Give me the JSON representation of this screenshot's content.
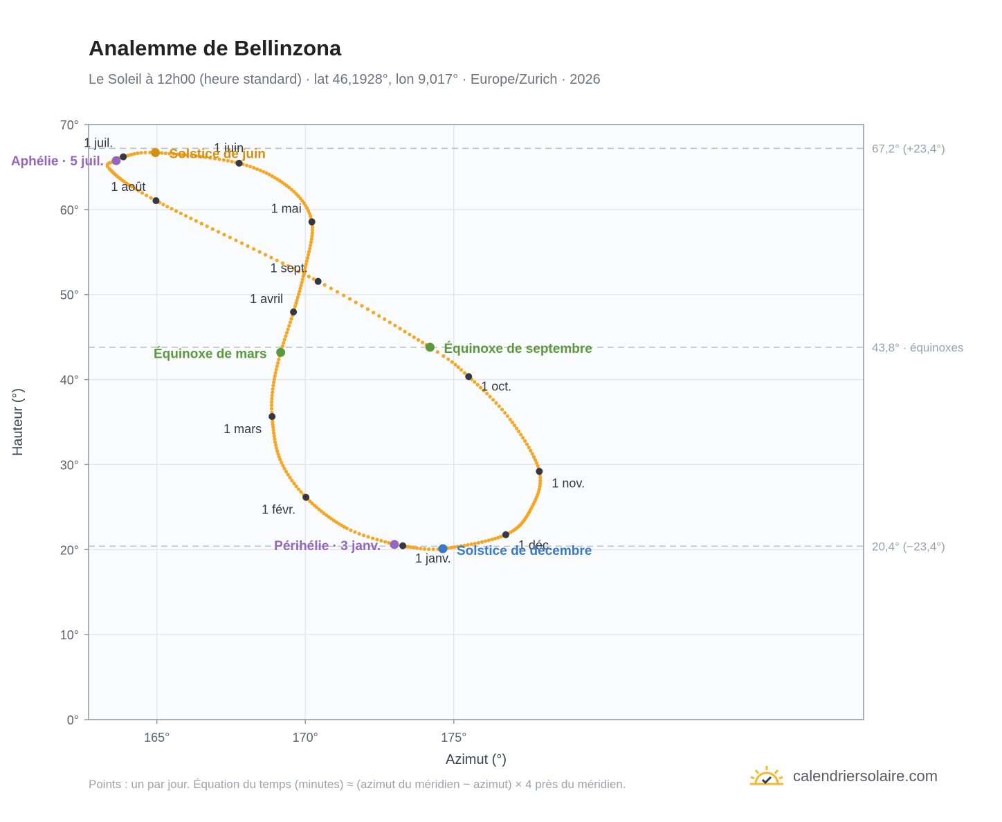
{
  "title": "Analemme de Bellinzona",
  "subtitle": "Le Soleil à 12h00 (heure standard) · lat 46,1928°, lon 9,017° · Europe/Zurich · 2026",
  "footnote": "Points : un par jour. Équation du temps (minutes) ≈ (azimut du méridien − azimut) × 4 près du méridien.",
  "brand": {
    "name": "calendriersolaire.com",
    "icon": "sun-check-icon"
  },
  "colors": {
    "curve": "#f5a623",
    "month_dot": "#333842",
    "aphelion": "#9467bd",
    "perihelion": "#9467bd",
    "june_solstice": "#d4900f",
    "december_solstice": "#3a7ac4",
    "equinox": "#5a9a3c",
    "reference_line": "#b8c0cc",
    "grid": "#e3e7ed",
    "plot_bg": "#fafbfd",
    "frame": "#8d97a5"
  },
  "chart_data": {
    "type": "scatter",
    "title": "Analemme de Bellinzona",
    "xlabel": "Azimut (°)",
    "ylabel": "Hauteur (°)",
    "xlim": [
      162.7,
      188.8
    ],
    "ylim": [
      0,
      70
    ],
    "x_ticks": [
      165,
      170,
      175
    ],
    "x_tick_labels": [
      "165°",
      "170°",
      "175°"
    ],
    "y_ticks": [
      0,
      10,
      20,
      30,
      40,
      50,
      60,
      70
    ],
    "y_tick_labels": [
      "0°",
      "10°",
      "20°",
      "30°",
      "40°",
      "50°",
      "60°",
      "70°"
    ],
    "grid": true,
    "series": [
      {
        "points_per": "day",
        "anchors": [
          {
            "date": "2026-01-01",
            "azimuth": 173.28,
            "altitude": 20.45
          },
          {
            "date": "2026-01-03",
            "azimuth": 173.0,
            "altitude": 20.6
          },
          {
            "date": "2026-01-15",
            "azimuth": 171.4,
            "altitude": 22.5
          },
          {
            "date": "2026-02-01",
            "azimuth": 170.02,
            "altitude": 26.15
          },
          {
            "date": "2026-02-14",
            "azimuth": 169.15,
            "altitude": 30.6
          },
          {
            "date": "2026-03-01",
            "azimuth": 168.88,
            "altitude": 35.65
          },
          {
            "date": "2026-03-10",
            "azimuth": 168.92,
            "altitude": 39.3
          },
          {
            "date": "2026-03-20",
            "azimuth": 169.17,
            "altitude": 43.2
          },
          {
            "date": "2026-04-01",
            "azimuth": 169.6,
            "altitude": 47.95
          },
          {
            "date": "2026-04-15",
            "azimuth": 169.98,
            "altitude": 52.9
          },
          {
            "date": "2026-05-01",
            "azimuth": 170.22,
            "altitude": 58.55
          },
          {
            "date": "2026-05-15",
            "azimuth": 169.45,
            "altitude": 62.6
          },
          {
            "date": "2026-06-01",
            "azimuth": 167.77,
            "altitude": 65.45
          },
          {
            "date": "2026-06-21",
            "azimuth": 164.95,
            "altitude": 66.7
          },
          {
            "date": "2026-07-01",
            "azimuth": 163.87,
            "altitude": 66.2
          },
          {
            "date": "2026-07-05",
            "azimuth": 163.63,
            "altitude": 65.75
          },
          {
            "date": "2026-07-12",
            "azimuth": 163.4,
            "altitude": 64.8
          },
          {
            "date": "2026-08-01",
            "azimuth": 164.97,
            "altitude": 61.05
          },
          {
            "date": "2026-09-01",
            "azimuth": 170.43,
            "altitude": 51.55
          },
          {
            "date": "2026-09-22",
            "azimuth": 174.2,
            "altitude": 43.8
          },
          {
            "date": "2026-10-01",
            "azimuth": 175.5,
            "altitude": 40.35
          },
          {
            "date": "2026-10-15",
            "azimuth": 176.9,
            "altitude": 35.3
          },
          {
            "date": "2026-11-01",
            "azimuth": 177.88,
            "altitude": 29.2
          },
          {
            "date": "2026-11-15",
            "azimuth": 177.6,
            "altitude": 24.8
          },
          {
            "date": "2026-12-01",
            "azimuth": 176.75,
            "altitude": 21.75
          },
          {
            "date": "2026-12-21",
            "azimuth": 174.63,
            "altitude": 20.1
          },
          {
            "date": "2026-12-31",
            "azimuth": 173.4,
            "altitude": 20.35
          }
        ]
      }
    ],
    "month_markers": [
      {
        "label": "1 janv.",
        "azimuth": 173.28,
        "altitude": 20.45
      },
      {
        "label": "1 févr.",
        "azimuth": 170.02,
        "altitude": 26.15
      },
      {
        "label": "1 mars",
        "azimuth": 168.88,
        "altitude": 35.65
      },
      {
        "label": "1 avril",
        "azimuth": 169.6,
        "altitude": 47.95
      },
      {
        "label": "1 mai",
        "azimuth": 170.22,
        "altitude": 58.55
      },
      {
        "label": "1 juin",
        "azimuth": 167.77,
        "altitude": 65.45
      },
      {
        "label": "1 juil.",
        "azimuth": 163.87,
        "altitude": 66.2
      },
      {
        "label": "1 août",
        "azimuth": 164.97,
        "altitude": 61.05
      },
      {
        "label": "1 sept.",
        "azimuth": 170.43,
        "altitude": 51.55
      },
      {
        "label": "1 oct.",
        "azimuth": 175.5,
        "altitude": 40.35
      },
      {
        "label": "1 nov.",
        "azimuth": 177.88,
        "altitude": 29.2
      },
      {
        "label": "1 déc.",
        "azimuth": 176.75,
        "altitude": 21.75
      }
    ],
    "events": [
      {
        "key": "aphelion",
        "label": "Aphélie · 5 juil.",
        "azimuth": 163.63,
        "altitude": 65.75
      },
      {
        "key": "june_solstice",
        "label": "Solstice de juin",
        "azimuth": 164.95,
        "altitude": 66.7
      },
      {
        "key": "equinox",
        "label": "Équinoxe de mars",
        "azimuth": 169.17,
        "altitude": 43.2
      },
      {
        "key": "equinox",
        "label": "Équinoxe de septembre",
        "azimuth": 174.2,
        "altitude": 43.8
      },
      {
        "key": "perihelion",
        "label": "Périhélie · 3 janv.",
        "azimuth": 173.0,
        "altitude": 20.6
      },
      {
        "key": "december_solstice",
        "label": "Solstice de décembre",
        "azimuth": 174.63,
        "altitude": 20.1
      }
    ],
    "reference_lines": [
      {
        "altitude": 67.2,
        "label": "67,2° (+23,4°)"
      },
      {
        "altitude": 43.8,
        "label": "43,8° · équinoxes"
      },
      {
        "altitude": 20.4,
        "label": "20,4° (−23,4°)"
      }
    ]
  }
}
